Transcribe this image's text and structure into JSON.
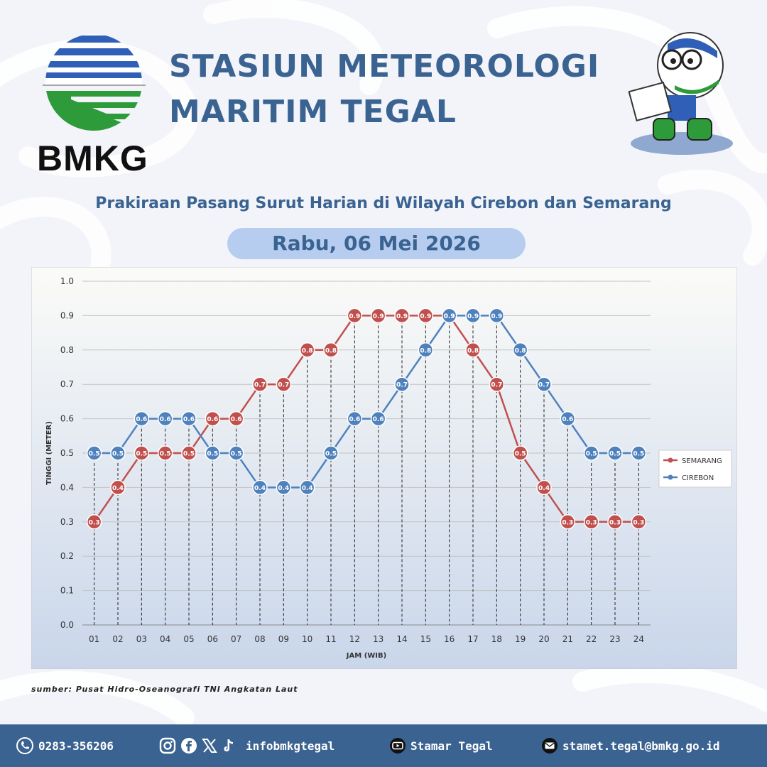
{
  "header": {
    "logo_text": "BMKG",
    "title_line1": "STASIUN METEOROLOGI",
    "title_line2": "MARITIM TEGAL",
    "subtitle": "Prakiraan Pasang Surut Harian di Wilayah Cirebon dan Semarang",
    "date": "Rabu, 06 Mei 2026"
  },
  "chart_data": {
    "type": "line",
    "title": "",
    "xlabel": "JAM (WIB)",
    "ylabel": "TINGGI (METER)",
    "ylim": [
      0,
      1.0
    ],
    "y_ticks": [
      "0.0",
      "0.1",
      "0.2",
      "0.3",
      "0.4",
      "0.5",
      "0.6",
      "0.7",
      "0.8",
      "0.9",
      "1.0"
    ],
    "categories": [
      "01",
      "02",
      "03",
      "04",
      "05",
      "06",
      "07",
      "08",
      "09",
      "10",
      "11",
      "12",
      "13",
      "14",
      "15",
      "16",
      "17",
      "18",
      "19",
      "20",
      "21",
      "22",
      "23",
      "24"
    ],
    "grid": true,
    "legend_position": "right",
    "series": [
      {
        "name": "SEMARANG",
        "color": "#c0504d",
        "values": [
          0.3,
          0.4,
          0.5,
          0.5,
          0.5,
          0.6,
          0.6,
          0.7,
          0.7,
          0.8,
          0.8,
          0.9,
          0.9,
          0.9,
          0.9,
          0.9,
          0.8,
          0.7,
          0.5,
          0.4,
          0.3,
          0.3,
          0.3,
          0.3
        ]
      },
      {
        "name": "CIREBON",
        "color": "#4f81bd",
        "values": [
          0.5,
          0.5,
          0.6,
          0.6,
          0.6,
          0.5,
          0.5,
          0.4,
          0.4,
          0.4,
          0.5,
          0.6,
          0.6,
          0.7,
          0.8,
          0.9,
          0.9,
          0.9,
          0.8,
          0.7,
          0.6,
          0.5,
          0.5,
          0.5
        ]
      }
    ]
  },
  "source": "sumber: Pusat Hidro-Oseanografi TNI Angkatan Laut",
  "footer": {
    "phone": "0283-356206",
    "social": "infobmkgtegal",
    "youtube": "Stamar Tegal",
    "email": "stamet.tegal@bmkg.go.id"
  },
  "colors": {
    "brand_blue": "#3b6391",
    "pill": "#b7cdf0",
    "footer": "#3b6391"
  }
}
